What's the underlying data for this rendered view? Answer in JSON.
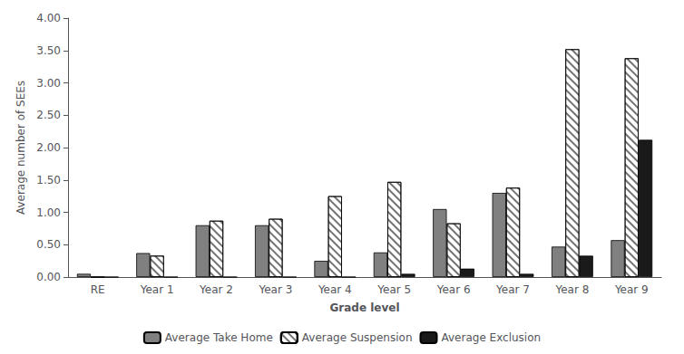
{
  "chart_data": {
    "type": "bar",
    "xlabel": "Grade level",
    "ylabel": "Average number of SEEs",
    "categories": [
      "RE",
      "Year 1",
      "Year 2",
      "Year 3",
      "Year 4",
      "Year 5",
      "Year 6",
      "Year 7",
      "Year 8",
      "Year 9"
    ],
    "series": [
      {
        "name": "Average Take Home",
        "color": "#808080",
        "values": [
          0.05,
          0.37,
          0.8,
          0.8,
          0.25,
          0.38,
          1.05,
          1.3,
          0.47,
          0.57
        ]
      },
      {
        "name": "Average Suspension",
        "color": "#ffffff",
        "values": [
          0.0,
          0.33,
          0.87,
          0.9,
          1.25,
          1.47,
          0.83,
          1.38,
          3.52,
          3.38
        ]
      },
      {
        "name": "Average Exclusion",
        "color": "#1a1a1a",
        "values": [
          0.0,
          0.0,
          0.0,
          0.0,
          0.0,
          0.05,
          0.13,
          0.05,
          0.33,
          2.12
        ]
      }
    ],
    "ylim": [
      0,
      4.0
    ],
    "yticks": [
      {
        "value": 0.0,
        "label": "0.00"
      },
      {
        "value": 0.5,
        "label": "0.50"
      },
      {
        "value": 1.0,
        "label": "1.00"
      },
      {
        "value": 1.5,
        "label": "1.50"
      },
      {
        "value": 2.0,
        "label": "2.00"
      },
      {
        "value": 2.5,
        "label": "2.50"
      },
      {
        "value": 3.0,
        "label": "3.00"
      },
      {
        "value": 3.5,
        "label": "3.50"
      },
      {
        "value": 4.0,
        "label": "4.00"
      }
    ],
    "grid": false,
    "legend": "bottom"
  }
}
